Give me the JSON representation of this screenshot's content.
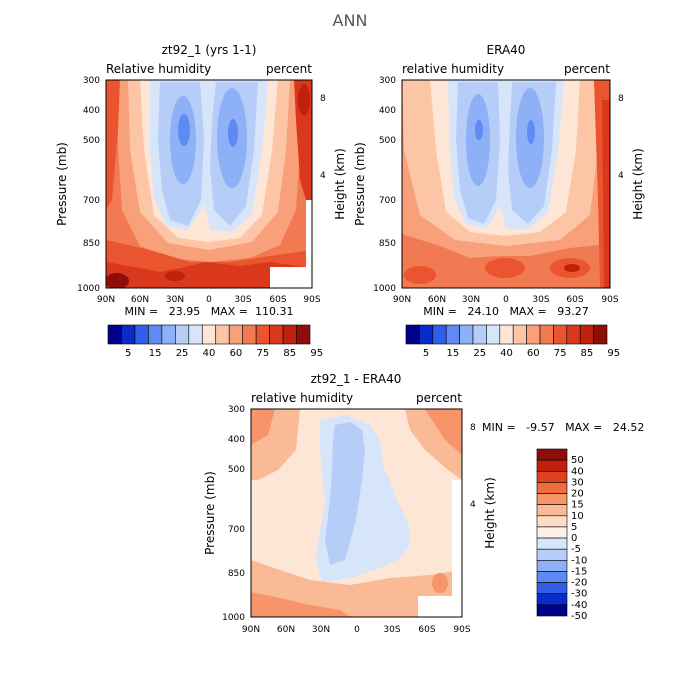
{
  "page_title": "ANN",
  "chart_data": [
    {
      "type": "heatmap",
      "title": "zt92_1 (yrs 1-1)",
      "subtitle_left": "Relative humidity",
      "subtitle_right": "percent",
      "ylabel": "Pressure (mb)",
      "ylabel_right": "Height (km)",
      "x_ticks": [
        "90N",
        "60N",
        "30N",
        "0",
        "30S",
        "60S",
        "90S"
      ],
      "y_ticks": [
        "300",
        "400",
        "500",
        "700",
        "850",
        "1000"
      ],
      "y_right_ticks": [
        "8",
        "4"
      ],
      "stats": "MIN =   23.95   MAX =  110.31",
      "colorbar_labels": [
        "5",
        "15",
        "25",
        "40",
        "60",
        "75",
        "85",
        "95"
      ],
      "colorbar_colors": [
        "#00008b",
        "#0a2bc9",
        "#2f5ee8",
        "#5f8af2",
        "#8db0f6",
        "#b6cdf8",
        "#d6e5fa",
        "#fde6d6",
        "#fcc6a6",
        "#f7a07a",
        "#f27a52",
        "#ea5530",
        "#d9381c",
        "#c0200e",
        "#8e0e0a"
      ],
      "missing_region_color": "#ffffff"
    },
    {
      "type": "heatmap",
      "title": "ERA40",
      "subtitle_left": "relative humidity",
      "subtitle_right": "percent",
      "ylabel": "Pressure (mb)",
      "ylabel_right": "Height (km)",
      "x_ticks": [
        "90N",
        "60N",
        "30N",
        "0",
        "30S",
        "60S",
        "90S"
      ],
      "y_ticks": [
        "300",
        "400",
        "500",
        "700",
        "850",
        "1000"
      ],
      "y_right_ticks": [
        "8",
        "4"
      ],
      "stats": "MIN =   24.10   MAX =   93.27",
      "colorbar_labels": [
        "5",
        "15",
        "25",
        "40",
        "60",
        "75",
        "85",
        "95"
      ],
      "colorbar_colors": [
        "#00008b",
        "#0a2bc9",
        "#2f5ee8",
        "#5f8af2",
        "#8db0f6",
        "#b6cdf8",
        "#d6e5fa",
        "#fde6d6",
        "#fcc6a6",
        "#f7a07a",
        "#f27a52",
        "#ea5530",
        "#d9381c",
        "#c0200e",
        "#8e0e0a"
      ]
    },
    {
      "type": "heatmap",
      "title": "zt92_1 - ERA40",
      "subtitle_left": "relative humidity",
      "subtitle_right": "percent",
      "ylabel": "Pressure (mb)",
      "ylabel_right": "Height (km)",
      "x_ticks": [
        "90N",
        "60N",
        "30N",
        "0",
        "30S",
        "60S",
        "90S"
      ],
      "y_ticks": [
        "300",
        "400",
        "500",
        "700",
        "850",
        "1000"
      ],
      "y_right_ticks": [
        "8",
        "4"
      ],
      "stats": "MIN =   -9.57   MAX =   24.52",
      "colorbar_labels": [
        "50",
        "40",
        "30",
        "20",
        "15",
        "10",
        "5",
        "0",
        "-5",
        "-10",
        "-15",
        "-20",
        "-30",
        "-40",
        "-50"
      ],
      "colorbar_colors": [
        "#8e0e0a",
        "#c0200e",
        "#e0401e",
        "#f26b3d",
        "#f7946a",
        "#faba95",
        "#fddcc4",
        "#fdf0e6",
        "#d6e5fa",
        "#b6cdf8",
        "#8db0f6",
        "#5f8af2",
        "#2f5ee8",
        "#0a2bc9",
        "#00008b"
      ],
      "missing_region_color": "#ffffff"
    }
  ]
}
